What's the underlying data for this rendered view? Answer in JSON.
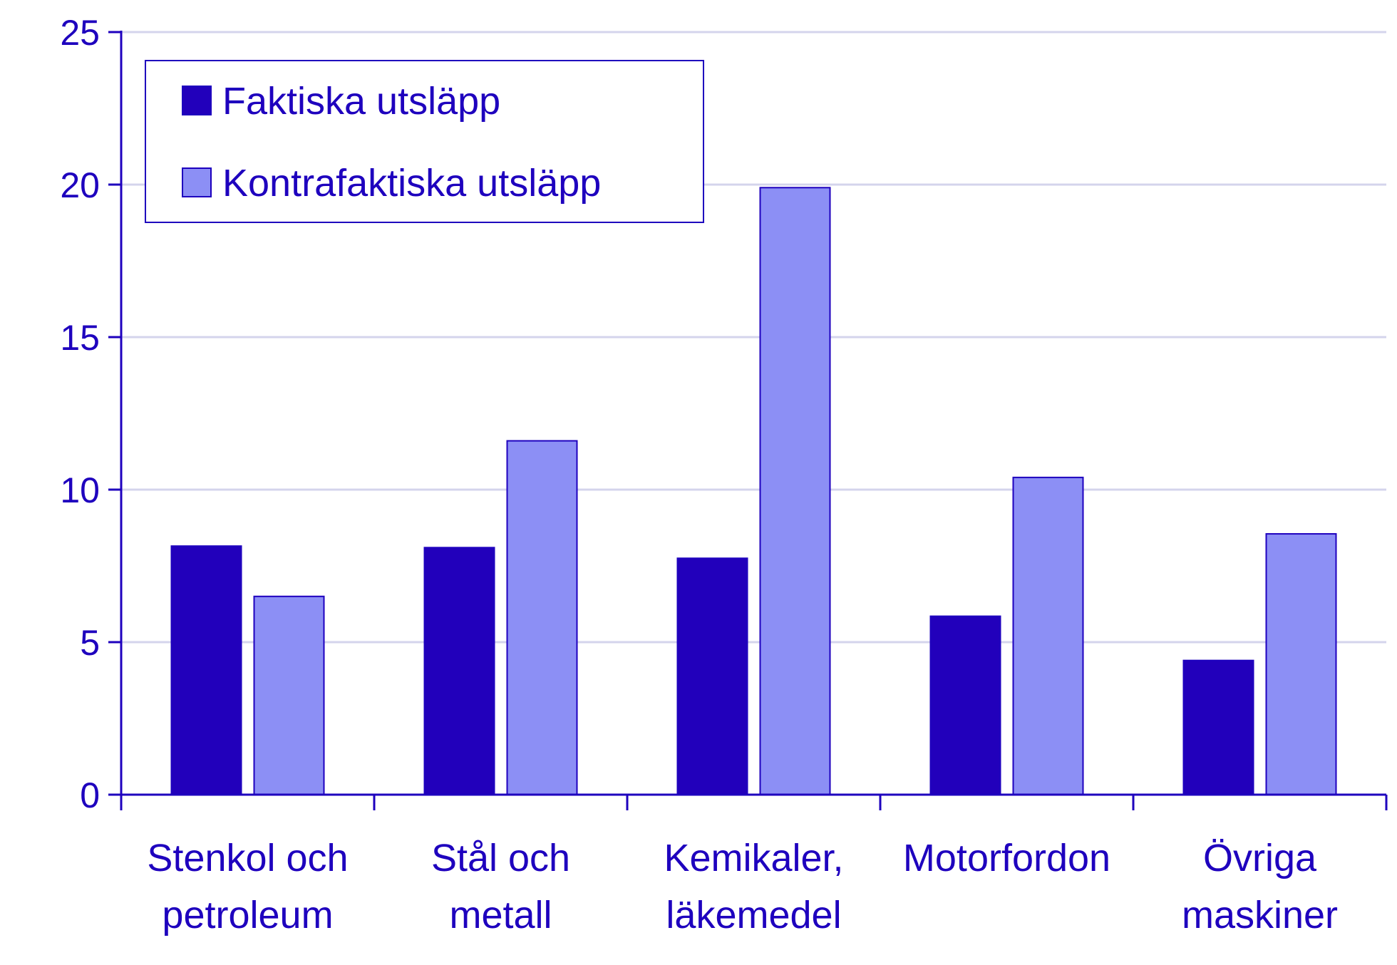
{
  "chart_data": {
    "type": "bar",
    "title": "",
    "xlabel": "",
    "ylabel": "",
    "ylim": [
      0,
      25
    ],
    "yticks": [
      0,
      5,
      10,
      15,
      20,
      25
    ],
    "grid": true,
    "legend_position": "top-left",
    "categories": [
      [
        "Stenkol och",
        "petroleum"
      ],
      [
        "Stål och",
        "metall"
      ],
      [
        "Kemikaler,",
        "läkemedel"
      ],
      [
        "Motorfordon"
      ],
      [
        "Övriga",
        "maskiner"
      ]
    ],
    "series": [
      {
        "name": "Faktiska utsläpp",
        "color": "#2200bb",
        "values": [
          8.15,
          8.1,
          7.75,
          5.85,
          4.4
        ]
      },
      {
        "name": "Kontrafaktiska utsläpp",
        "color": "#8c8ff5",
        "values": [
          6.5,
          11.6,
          19.9,
          10.4,
          8.55
        ]
      }
    ],
    "colors": {
      "axis": "#1e00be",
      "grid": "#d4d4ec",
      "text": "#1e00be"
    }
  }
}
